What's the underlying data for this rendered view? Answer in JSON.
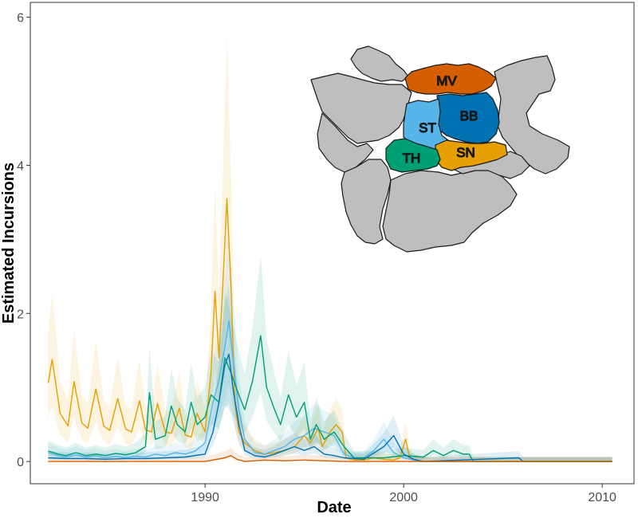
{
  "chart_data": {
    "type": "line",
    "title": "",
    "xlabel": "Date",
    "ylabel": "Estimated Incursions",
    "xlim": [
      1981.2,
      2011.6
    ],
    "ylim": [
      -0.3,
      6.2
    ],
    "x_ticks": [
      1990,
      2000,
      2010
    ],
    "y_ticks": [
      0,
      2,
      4,
      6
    ],
    "grid": false,
    "legend": "none",
    "inset_map": {
      "description_regions": [
        "MV",
        "BB",
        "ST",
        "SN",
        "TH"
      ],
      "colors": {
        "MV": "#d55e00",
        "BB": "#0072b2",
        "ST": "#56b4e9",
        "SN": "#e69f00",
        "TH": "#009e73",
        "other": "#bebebe"
      }
    },
    "series": [
      {
        "name": "SN",
        "color": "#e69f00",
        "band_color": "#e69f00",
        "points": [
          [
            1982.1,
            1.06
          ],
          [
            1982.3,
            1.38
          ],
          [
            1982.7,
            0.65
          ],
          [
            1983.1,
            0.48
          ],
          [
            1983.4,
            1.08
          ],
          [
            1983.8,
            0.52
          ],
          [
            1984.1,
            0.45
          ],
          [
            1984.5,
            0.98
          ],
          [
            1984.9,
            0.48
          ],
          [
            1985.2,
            0.42
          ],
          [
            1985.6,
            0.85
          ],
          [
            1986.0,
            0.44
          ],
          [
            1986.3,
            0.4
          ],
          [
            1986.7,
            0.82
          ],
          [
            1987.0,
            0.43
          ],
          [
            1987.3,
            0.4
          ],
          [
            1987.6,
            0.78
          ],
          [
            1988.0,
            0.4
          ],
          [
            1988.3,
            0.38
          ],
          [
            1988.7,
            0.72
          ],
          [
            1989.0,
            0.36
          ],
          [
            1989.3,
            0.33
          ],
          [
            1989.6,
            0.65
          ],
          [
            1990.0,
            0.4
          ],
          [
            1990.3,
            1.2
          ],
          [
            1990.5,
            2.3
          ],
          [
            1990.7,
            1.4
          ],
          [
            1990.9,
            2.4
          ],
          [
            1991.1,
            3.55
          ],
          [
            1991.3,
            2.4
          ],
          [
            1991.5,
            0.8
          ],
          [
            1991.7,
            0.4
          ],
          [
            1992.0,
            0.25
          ],
          [
            1992.5,
            0.15
          ],
          [
            1993.0,
            0.1
          ],
          [
            1993.5,
            0.12
          ],
          [
            1994.0,
            0.15
          ],
          [
            1994.5,
            0.2
          ],
          [
            1995.0,
            0.35
          ],
          [
            1995.3,
            0.25
          ],
          [
            1995.7,
            0.45
          ],
          [
            1995.9,
            0.2
          ],
          [
            1996.3,
            0.4
          ],
          [
            1996.6,
            0.5
          ],
          [
            1996.9,
            0.4
          ],
          [
            1997.1,
            0.05
          ],
          [
            1997.5,
            0.02
          ],
          [
            1998.0,
            0.02
          ],
          [
            1998.5,
            0.05
          ],
          [
            1999.0,
            0.03
          ],
          [
            1999.5,
            0.02
          ],
          [
            1999.8,
            0.05
          ],
          [
            2000.1,
            0.3
          ],
          [
            2000.3,
            0.05
          ],
          [
            2000.6,
            0.02
          ],
          [
            2001.0,
            0.0
          ],
          [
            2010.5,
            0.0
          ]
        ]
      },
      {
        "name": "ST",
        "color": "#56b4e9",
        "band_color": "#56b4e9",
        "points": [
          [
            1982.1,
            0.12
          ],
          [
            1982.6,
            0.08
          ],
          [
            1983.0,
            0.06
          ],
          [
            1983.5,
            0.09
          ],
          [
            1984.0,
            0.06
          ],
          [
            1984.5,
            0.08
          ],
          [
            1985.0,
            0.05
          ],
          [
            1985.5,
            0.07
          ],
          [
            1986.0,
            0.05
          ],
          [
            1986.5,
            0.07
          ],
          [
            1987.0,
            0.06
          ],
          [
            1987.5,
            0.1
          ],
          [
            1988.0,
            0.08
          ],
          [
            1988.5,
            0.12
          ],
          [
            1989.0,
            0.1
          ],
          [
            1989.5,
            0.14
          ],
          [
            1990.0,
            0.25
          ],
          [
            1990.4,
            0.8
          ],
          [
            1990.7,
            1.1
          ],
          [
            1991.0,
            1.55
          ],
          [
            1991.2,
            1.9
          ],
          [
            1991.4,
            1.4
          ],
          [
            1991.7,
            0.7
          ],
          [
            1992.0,
            0.3
          ],
          [
            1992.5,
            0.12
          ],
          [
            1993.0,
            0.1
          ],
          [
            1993.5,
            0.15
          ],
          [
            1994.0,
            0.2
          ],
          [
            1994.5,
            0.3
          ],
          [
            1995.0,
            0.35
          ],
          [
            1995.5,
            0.45
          ],
          [
            1996.0,
            0.4
          ],
          [
            1996.5,
            0.35
          ],
          [
            1997.0,
            0.1
          ],
          [
            1997.5,
            0.05
          ],
          [
            1998.0,
            0.05
          ],
          [
            1998.5,
            0.15
          ],
          [
            1999.0,
            0.3
          ],
          [
            1999.5,
            0.12
          ],
          [
            2000.0,
            0.05
          ],
          [
            2000.5,
            0.02
          ],
          [
            2001.0,
            0.0
          ],
          [
            2010.5,
            0.0
          ]
        ]
      },
      {
        "name": "TH",
        "color": "#009e73",
        "band_color": "#009e73",
        "points": [
          [
            1982.1,
            0.14
          ],
          [
            1982.6,
            0.1
          ],
          [
            1983.0,
            0.08
          ],
          [
            1983.5,
            0.12
          ],
          [
            1984.0,
            0.08
          ],
          [
            1984.5,
            0.1
          ],
          [
            1985.0,
            0.08
          ],
          [
            1985.5,
            0.11
          ],
          [
            1986.0,
            0.09
          ],
          [
            1986.5,
            0.12
          ],
          [
            1987.0,
            0.2
          ],
          [
            1987.2,
            0.93
          ],
          [
            1987.5,
            0.3
          ],
          [
            1988.0,
            0.35
          ],
          [
            1988.3,
            0.75
          ],
          [
            1988.6,
            0.5
          ],
          [
            1989.0,
            0.4
          ],
          [
            1989.3,
            0.8
          ],
          [
            1989.6,
            0.5
          ],
          [
            1990.0,
            0.6
          ],
          [
            1990.3,
            0.9
          ],
          [
            1990.7,
            0.8
          ],
          [
            1991.0,
            1.4
          ],
          [
            1991.3,
            1.2
          ],
          [
            1991.7,
            0.9
          ],
          [
            1992.0,
            0.7
          ],
          [
            1992.4,
            1.1
          ],
          [
            1992.8,
            1.7
          ],
          [
            1993.1,
            1.0
          ],
          [
            1993.5,
            0.7
          ],
          [
            1993.8,
            0.5
          ],
          [
            1994.2,
            0.9
          ],
          [
            1994.6,
            0.6
          ],
          [
            1995.0,
            0.8
          ],
          [
            1995.3,
            0.3
          ],
          [
            1995.6,
            0.5
          ],
          [
            1996.0,
            0.3
          ],
          [
            1996.5,
            0.4
          ],
          [
            1997.0,
            0.2
          ],
          [
            1997.5,
            0.05
          ],
          [
            1998.0,
            0.05
          ],
          [
            1999.0,
            0.05
          ],
          [
            2000.0,
            0.08
          ],
          [
            2001.0,
            0.06
          ],
          [
            2001.5,
            0.15
          ],
          [
            2002.0,
            0.08
          ],
          [
            2002.5,
            0.15
          ],
          [
            2003.0,
            0.1
          ],
          [
            2003.3,
            0.1
          ],
          [
            2003.5,
            0.0
          ],
          [
            2010.5,
            0.0
          ]
        ]
      },
      {
        "name": "BB",
        "color": "#0072b2",
        "band_color": "#0072b2",
        "points": [
          [
            1982.1,
            0.05
          ],
          [
            1983.0,
            0.04
          ],
          [
            1984.0,
            0.04
          ],
          [
            1985.0,
            0.03
          ],
          [
            1986.0,
            0.04
          ],
          [
            1987.0,
            0.04
          ],
          [
            1988.0,
            0.05
          ],
          [
            1989.0,
            0.06
          ],
          [
            1990.0,
            0.1
          ],
          [
            1990.4,
            0.4
          ],
          [
            1990.7,
            0.8
          ],
          [
            1991.0,
            1.3
          ],
          [
            1991.2,
            1.45
          ],
          [
            1991.4,
            1.0
          ],
          [
            1991.7,
            0.5
          ],
          [
            1992.0,
            0.15
          ],
          [
            1992.5,
            0.08
          ],
          [
            1993.0,
            0.06
          ],
          [
            1993.5,
            0.1
          ],
          [
            1994.0,
            0.15
          ],
          [
            1994.5,
            0.2
          ],
          [
            1995.0,
            0.15
          ],
          [
            1995.5,
            0.2
          ],
          [
            1996.0,
            0.1
          ],
          [
            1996.5,
            0.08
          ],
          [
            1997.0,
            0.05
          ],
          [
            1998.0,
            0.03
          ],
          [
            1999.0,
            0.2
          ],
          [
            1999.5,
            0.35
          ],
          [
            2000.0,
            0.1
          ],
          [
            2000.5,
            0.03
          ],
          [
            2001.0,
            0.0
          ],
          [
            2005.8,
            0.05
          ],
          [
            2006.0,
            0.0
          ],
          [
            2010.5,
            0.0
          ]
        ]
      },
      {
        "name": "MV",
        "color": "#d55e00",
        "band_color": "#d55e00",
        "points": [
          [
            1982.1,
            0.0
          ],
          [
            1983.0,
            0.0
          ],
          [
            1984.0,
            0.0
          ],
          [
            1985.0,
            0.0
          ],
          [
            1986.0,
            0.0
          ],
          [
            1987.0,
            0.0
          ],
          [
            1988.0,
            0.0
          ],
          [
            1989.0,
            0.0
          ],
          [
            1989.5,
            0.0
          ],
          [
            1990.0,
            0.0
          ],
          [
            1991.0,
            0.05
          ],
          [
            1991.3,
            0.08
          ],
          [
            1991.6,
            0.03
          ],
          [
            1992.0,
            0.0
          ],
          [
            1993.0,
            0.02
          ],
          [
            1994.0,
            0.01
          ],
          [
            1995.0,
            0.02
          ],
          [
            1996.0,
            0.01
          ],
          [
            1997.0,
            0.0
          ],
          [
            2010.5,
            0.0
          ]
        ]
      }
    ]
  }
}
